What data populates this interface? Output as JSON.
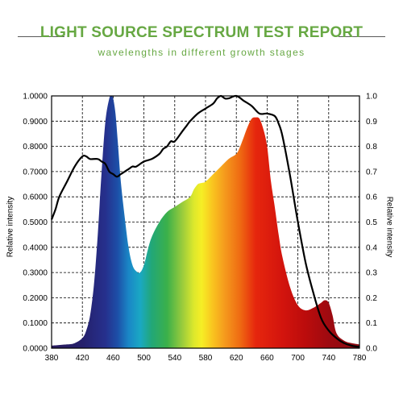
{
  "header": {
    "title": "LIGHT SOURCE SPECTRUM TEST REPORT",
    "subtitle": "wavelengths in different growth stages"
  },
  "colors": {
    "title": "#67a843",
    "subtitle": "#67a843",
    "rule": "#5a5a5a",
    "curve": "#000000",
    "grid": "#000000"
  },
  "chart_data": {
    "type": "area",
    "title": "LIGHT SOURCE SPECTRUM TEST REPORT",
    "subtitle": "wavelengths in different growth stages",
    "xlabel": "",
    "ylabel": "Relative intensity",
    "y2label": "Relative intensity",
    "xlim": [
      380,
      780
    ],
    "ylim": [
      0,
      1
    ],
    "grid": true,
    "legend": "none",
    "x_ticks": [
      "380",
      "420",
      "460",
      "500",
      "540",
      "580",
      "620",
      "660",
      "700",
      "740",
      "780"
    ],
    "y_ticks_left": [
      "0.0000",
      "0.1000",
      "0.2000",
      "0.3000",
      "0.4000",
      "0.5000",
      "0.6000",
      "0.7000",
      "0.8000",
      "0.9000",
      "1.0000"
    ],
    "y_ticks_right": [
      "0.0",
      "0.1",
      "0.2",
      "0.3",
      "0.4",
      "0.5",
      "0.6",
      "0.7",
      "0.8",
      "0.9",
      "1.0"
    ],
    "series": [
      {
        "fill": "spectral",
        "x": [
          380,
          400,
          410,
          420,
          425,
          430,
          435,
          440,
          445,
          450,
          455,
          458,
          460,
          463,
          466,
          470,
          475,
          480,
          485,
          490,
          495,
          500,
          505,
          510,
          520,
          530,
          540,
          550,
          560,
          565,
          570,
          575,
          580,
          590,
          600,
          610,
          620,
          625,
          630,
          635,
          640,
          645,
          650,
          655,
          660,
          665,
          670,
          675,
          680,
          690,
          700,
          710,
          720,
          730,
          735,
          740,
          745,
          750,
          760,
          770,
          780
        ],
        "y": [
          0.01,
          0.015,
          0.02,
          0.04,
          0.07,
          0.13,
          0.25,
          0.45,
          0.7,
          0.9,
          0.99,
          1.0,
          0.99,
          0.93,
          0.82,
          0.66,
          0.52,
          0.4,
          0.33,
          0.305,
          0.3,
          0.33,
          0.39,
          0.44,
          0.5,
          0.54,
          0.56,
          0.58,
          0.6,
          0.63,
          0.65,
          0.655,
          0.66,
          0.69,
          0.72,
          0.75,
          0.77,
          0.8,
          0.84,
          0.88,
          0.91,
          0.915,
          0.91,
          0.87,
          0.8,
          0.66,
          0.56,
          0.45,
          0.36,
          0.24,
          0.17,
          0.15,
          0.16,
          0.18,
          0.19,
          0.18,
          0.13,
          0.06,
          0.03,
          0.02,
          0.015
        ]
      },
      {
        "line": true,
        "x": [
          380,
          385,
          390,
          400,
          410,
          420,
          425,
          430,
          440,
          445,
          450,
          455,
          460,
          465,
          470,
          480,
          485,
          490,
          500,
          510,
          520,
          525,
          530,
          535,
          540,
          550,
          555,
          560,
          570,
          580,
          590,
          595,
          600,
          605,
          610,
          620,
          630,
          640,
          650,
          660,
          670,
          675,
          680,
          690,
          700,
          710,
          720,
          730,
          740,
          750,
          760,
          770,
          780
        ],
        "y": [
          0.51,
          0.55,
          0.6,
          0.66,
          0.72,
          0.76,
          0.76,
          0.75,
          0.75,
          0.74,
          0.73,
          0.7,
          0.69,
          0.68,
          0.69,
          0.71,
          0.72,
          0.72,
          0.74,
          0.75,
          0.77,
          0.79,
          0.8,
          0.82,
          0.82,
          0.86,
          0.88,
          0.9,
          0.93,
          0.95,
          0.97,
          0.99,
          1.0,
          0.99,
          0.99,
          1.0,
          0.98,
          0.96,
          0.93,
          0.93,
          0.92,
          0.89,
          0.84,
          0.68,
          0.5,
          0.34,
          0.22,
          0.12,
          0.07,
          0.04,
          0.02,
          0.01,
          0.005
        ]
      }
    ]
  }
}
